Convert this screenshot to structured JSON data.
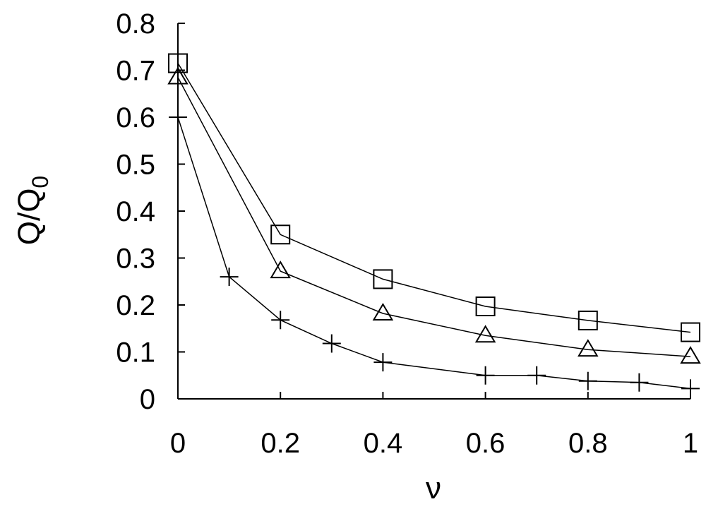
{
  "chart_data": {
    "type": "line",
    "title": "",
    "xlabel": "ν",
    "ylabel": "Q/Q",
    "ylabel_subscript": "0",
    "xlim": [
      0,
      1
    ],
    "ylim": [
      0,
      0.8
    ],
    "xticks": [
      "0",
      "0.2",
      "0.4",
      "0.6",
      "0.8",
      "1"
    ],
    "yticks": [
      "0",
      "0.1",
      "0.2",
      "0.3",
      "0.4",
      "0.5",
      "0.6",
      "0.7",
      "0.8"
    ],
    "grid": false,
    "legend": "none",
    "series": [
      {
        "marker": "square",
        "x": [
          0,
          0.2,
          0.4,
          0.6,
          0.8,
          1.0
        ],
        "y": [
          0.715,
          0.35,
          0.255,
          0.197,
          0.167,
          0.142
        ]
      },
      {
        "marker": "triangle",
        "x": [
          0,
          0.2,
          0.4,
          0.6,
          0.8,
          1.0
        ],
        "y": [
          0.685,
          0.272,
          0.182,
          0.135,
          0.105,
          0.09
        ]
      },
      {
        "marker": "plus",
        "x": [
          0,
          0.1,
          0.2,
          0.3,
          0.4,
          0.6,
          0.7,
          0.8,
          0.9,
          1.0
        ],
        "y": [
          0.6,
          0.26,
          0.168,
          0.118,
          0.078,
          0.05,
          0.05,
          0.038,
          0.035,
          0.022
        ]
      }
    ],
    "colors": {
      "line": "#000000",
      "background": "#ffffff"
    }
  }
}
